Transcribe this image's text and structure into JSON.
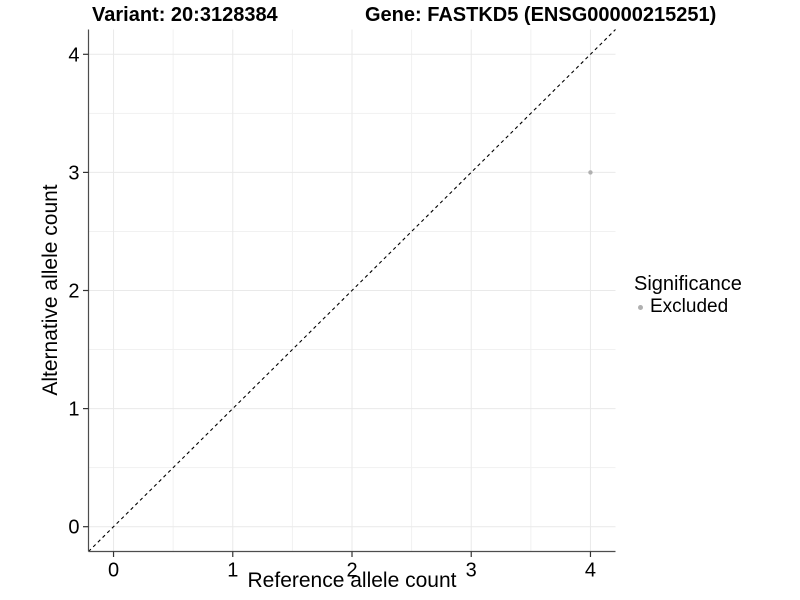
{
  "header": {
    "variant_title": "Variant: 20:3128384",
    "gene_title": "Gene: FASTKD5 (ENSG00000215251)"
  },
  "chart_data": {
    "type": "scatter",
    "xlabel": "Reference allele count",
    "ylabel": "Alternative allele count",
    "xlim": [
      -0.21,
      4.21
    ],
    "ylim": [
      -0.21,
      4.21
    ],
    "xticks": [
      0,
      1,
      2,
      3,
      4
    ],
    "yticks": [
      0,
      1,
      2,
      3,
      4
    ],
    "minor_xticks": [
      0.5,
      1.5,
      2.5,
      3.5
    ],
    "minor_yticks": [
      0.5,
      1.5,
      2.5,
      3.5
    ],
    "grid": "major+minor",
    "identity_line": {
      "slope": 1,
      "intercept": 0,
      "style": "dashed",
      "color": "#000000"
    },
    "series": [
      {
        "name": "Excluded",
        "color": "#b0b0b0",
        "points": [
          {
            "x": 4,
            "y": 3
          }
        ]
      }
    ],
    "legend": {
      "title": "Significance",
      "position": "right-center",
      "items": [
        {
          "label": "Excluded",
          "color": "#b0b0b0"
        }
      ]
    },
    "colors": {
      "background": "#ffffff",
      "grid_major": "#e9e9e9",
      "grid_minor": "#f1f1f1",
      "axis_line": "#4d4d4d",
      "tick_mark": "#333333",
      "text": "#000000"
    }
  }
}
